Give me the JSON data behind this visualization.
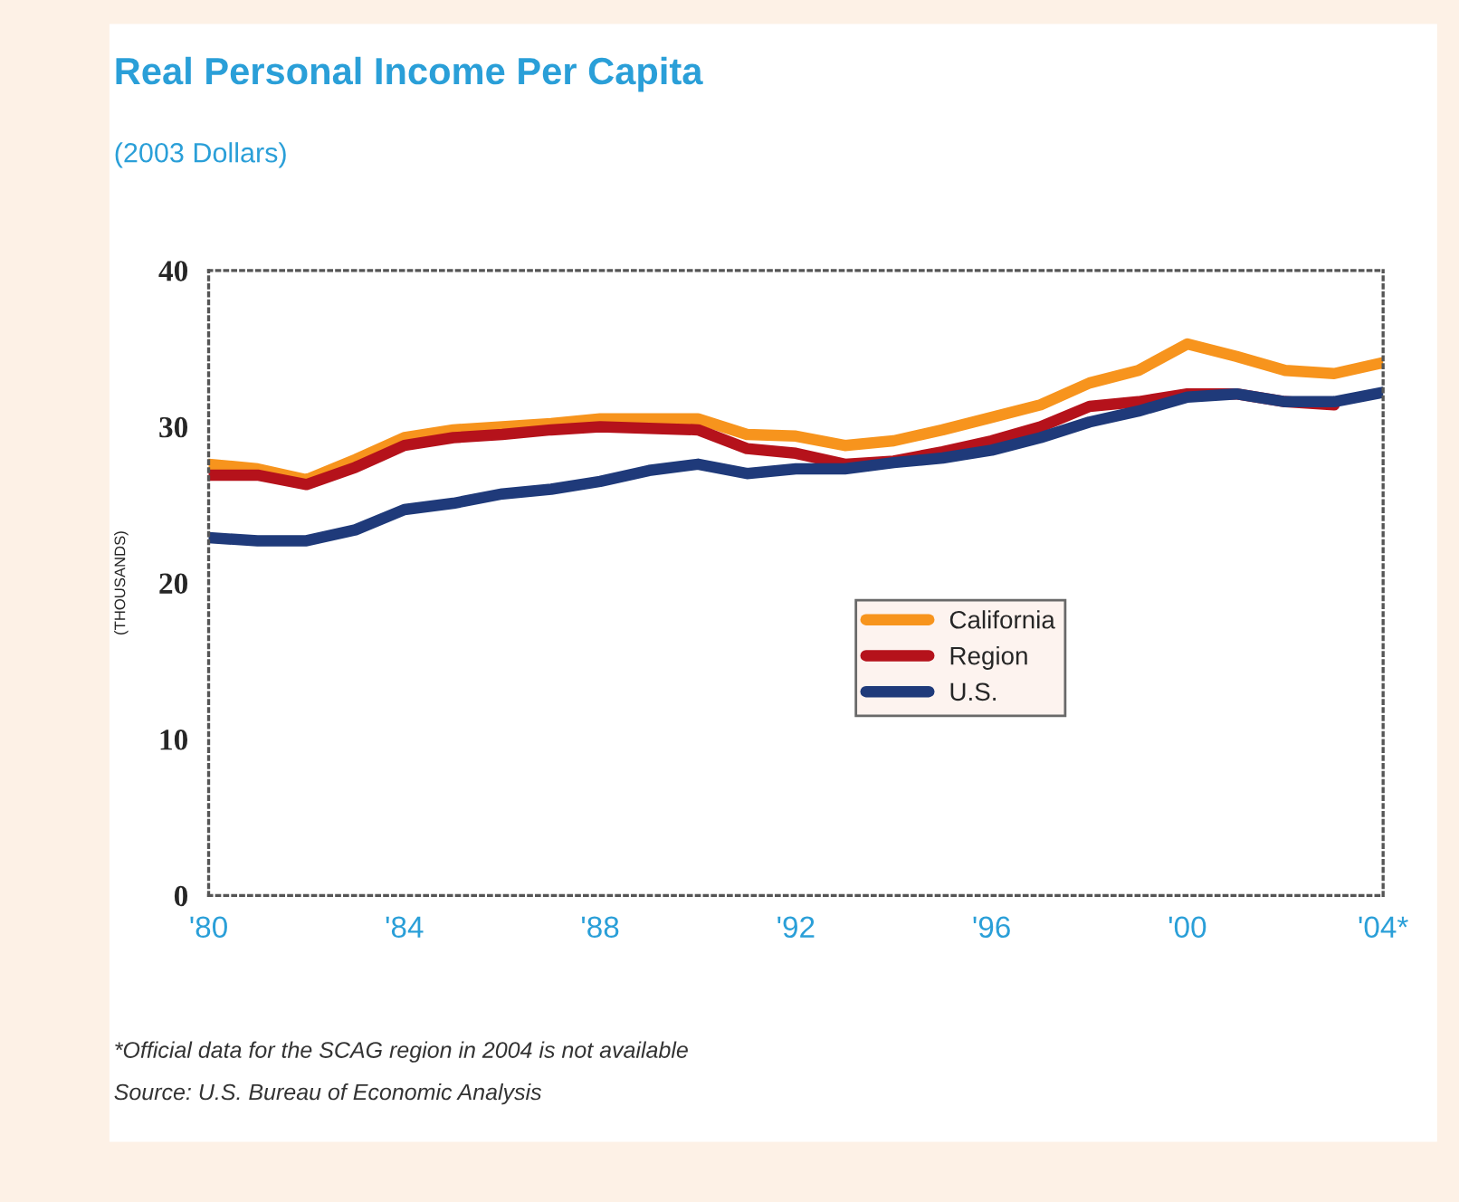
{
  "chart_data": {
    "type": "line",
    "title": "Real Personal Income Per Capita",
    "subtitle": "(2003 Dollars)",
    "ylabel": "(THOUSANDS)",
    "categories": [
      "'80",
      null,
      null,
      null,
      "'84",
      null,
      null,
      null,
      "'88",
      null,
      null,
      null,
      "'92",
      null,
      null,
      null,
      "'96",
      null,
      null,
      null,
      "'00",
      null,
      null,
      null,
      "'04*"
    ],
    "series": [
      {
        "name": "California",
        "color": "#f7941d",
        "values": [
          27.6,
          27.3,
          26.6,
          27.9,
          29.3,
          29.8,
          30.0,
          30.2,
          30.5,
          30.5,
          30.5,
          29.5,
          29.4,
          28.8,
          29.1,
          29.8,
          30.6,
          31.4,
          32.8,
          33.6,
          35.3,
          34.5,
          33.6,
          33.4,
          34.1
        ]
      },
      {
        "name": "Region",
        "color": "#b5121b",
        "values": [
          26.9,
          26.9,
          26.3,
          27.4,
          28.8,
          29.3,
          29.5,
          29.8,
          30.0,
          29.9,
          29.8,
          28.6,
          28.3,
          27.6,
          27.8,
          28.4,
          29.1,
          30.0,
          31.3,
          31.6,
          32.1,
          32.1,
          31.6,
          31.4,
          null
        ]
      },
      {
        "name": "U.S.",
        "color": "#1f3a7a",
        "values": [
          22.9,
          22.7,
          22.7,
          23.4,
          24.7,
          25.1,
          25.7,
          26.0,
          26.5,
          27.2,
          27.6,
          27.0,
          27.3,
          27.3,
          27.7,
          28.0,
          28.5,
          29.3,
          30.3,
          31.0,
          31.9,
          32.1,
          31.6,
          31.6,
          32.2
        ]
      }
    ],
    "ylim": [
      0,
      40
    ],
    "yticks": [
      0,
      10,
      20,
      30,
      40
    ],
    "grid": false,
    "legend": "right",
    "marker": "none",
    "line_style": "solid",
    "annotations": [
      "*Official data for the SCAG region in 2004 is not available",
      "Source: U.S. Bureau of Economic Analysis"
    ]
  }
}
